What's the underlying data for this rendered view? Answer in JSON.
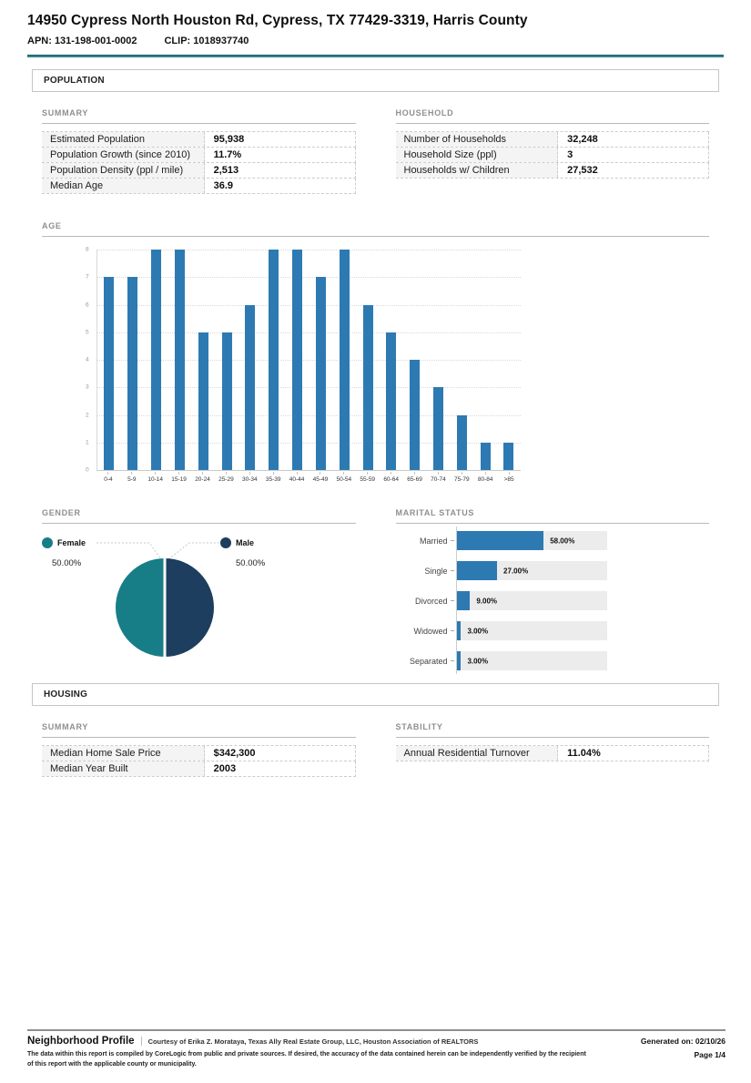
{
  "header": {
    "title": "14950 Cypress North Houston Rd, Cypress, TX 77429-3319, Harris County",
    "apn": "APN: 131-198-001-0002",
    "clip": "CLIP: 1018937740"
  },
  "colors": {
    "accent_teal": "#2e8494",
    "bar_blue": "#2d7ab3",
    "pie_female": "#177e87",
    "pie_male": "#1d3e5e",
    "track_gray": "#ececec"
  },
  "population": {
    "band_title": "POPULATION",
    "summary": {
      "title": "SUMMARY",
      "rows": [
        {
          "label": "Estimated Population",
          "value": "95,938"
        },
        {
          "label": "Population Growth (since 2010)",
          "value": "11.7%"
        },
        {
          "label": "Population Density (ppl / mile)",
          "value": "2,513"
        },
        {
          "label": "Median Age",
          "value": "36.9"
        }
      ]
    },
    "household": {
      "title": "HOUSEHOLD",
      "rows": [
        {
          "label": "Number of Households",
          "value": "32,248"
        },
        {
          "label": "Household Size (ppl)",
          "value": "3"
        },
        {
          "label": "Households w/ Children",
          "value": "27,532"
        }
      ]
    },
    "age_title": "AGE",
    "gender_title": "GENDER",
    "marital_title": "MARITAL STATUS"
  },
  "housing": {
    "band_title": "HOUSING",
    "summary": {
      "title": "SUMMARY",
      "rows": [
        {
          "label": "Median Home Sale Price",
          "value": "$342,300"
        },
        {
          "label": "Median Year Built",
          "value": "2003"
        }
      ]
    },
    "stability": {
      "title": "STABILITY",
      "rows": [
        {
          "label": "Annual Residential Turnover",
          "value": "11.04%"
        }
      ]
    }
  },
  "chart_data": [
    {
      "type": "bar",
      "title": "AGE",
      "categories": [
        "0-4",
        "5-9",
        "10-14",
        "15-19",
        "20-24",
        "25-29",
        "30-34",
        "35-39",
        "40-44",
        "45-49",
        "50-54",
        "55-59",
        "60-64",
        "65-69",
        "70-74",
        "75-79",
        "80-84",
        ">85"
      ],
      "values": [
        7,
        7,
        8,
        8,
        5,
        5,
        6,
        8,
        8,
        7,
        8,
        6,
        5,
        4,
        3,
        2,
        1,
        1
      ],
      "xlabel": "",
      "ylabel": "",
      "ylim": [
        0,
        8
      ],
      "yticks": [
        0,
        1,
        2,
        3,
        4,
        5,
        6,
        7,
        8
      ],
      "grid": "horizontal-dotted",
      "legend_position": "none"
    },
    {
      "type": "pie",
      "title": "GENDER",
      "labels": [
        "Female",
        "Male"
      ],
      "values": [
        50,
        50
      ],
      "value_labels": [
        "50.00%",
        "50.00%"
      ],
      "colors": [
        "#177e87",
        "#1d3e5e"
      ],
      "legend_position": "top"
    },
    {
      "type": "bar",
      "title": "MARITAL STATUS",
      "orientation": "horizontal",
      "categories": [
        "Married",
        "Single",
        "Divorced",
        "Widowed",
        "Separated"
      ],
      "values": [
        58,
        27,
        9,
        3,
        3
      ],
      "value_labels": [
        "58.00%",
        "27.00%",
        "9.00%",
        "3.00%",
        "3.00%"
      ],
      "xlim": [
        0,
        100
      ],
      "grid": "off",
      "legend_position": "none"
    }
  ],
  "footer": {
    "title": "Neighborhood Profile",
    "courtesy": "Courtesy of Erika Z. Morataya, Texas Ally Real Estate Group, LLC, Houston Association of REALTORS",
    "generated": "Generated on: 02/10/26",
    "disclaimer": "The data within this report is compiled by CoreLogic from public and private sources. If desired, the accuracy of the data contained herein can be independently verified by the recipient of this report with the applicable county or municipality.",
    "page": "Page 1/4"
  }
}
